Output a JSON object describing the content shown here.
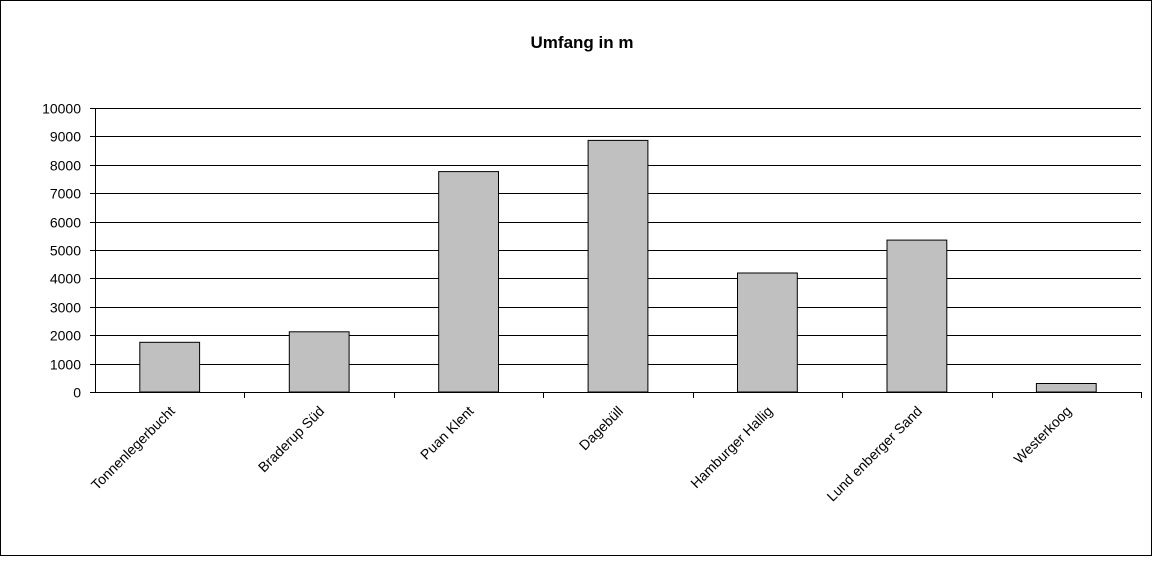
{
  "chart_data": {
    "type": "bar",
    "title": "Umfang in m",
    "xlabel": "",
    "ylabel": "",
    "categories": [
      "Tonnenlegerbucht",
      "Braderup Süd",
      "Puan Klent",
      "Dagebüll",
      "Hamburger Hallig",
      "Lund enberger Sand",
      "Westerkoog"
    ],
    "values": [
      1750,
      2120,
      7760,
      8860,
      4190,
      5350,
      300
    ],
    "ylim": [
      0,
      10000
    ],
    "yticks": [
      "0",
      "1000",
      "2000",
      "3000",
      "4000",
      "5000",
      "6000",
      "7000",
      "8000",
      "9000",
      "10000"
    ],
    "grid": true,
    "legend": "none",
    "bar_color": "#c0c0c0",
    "bar_edge_color": "#000000",
    "gridline_color": "#000000"
  }
}
